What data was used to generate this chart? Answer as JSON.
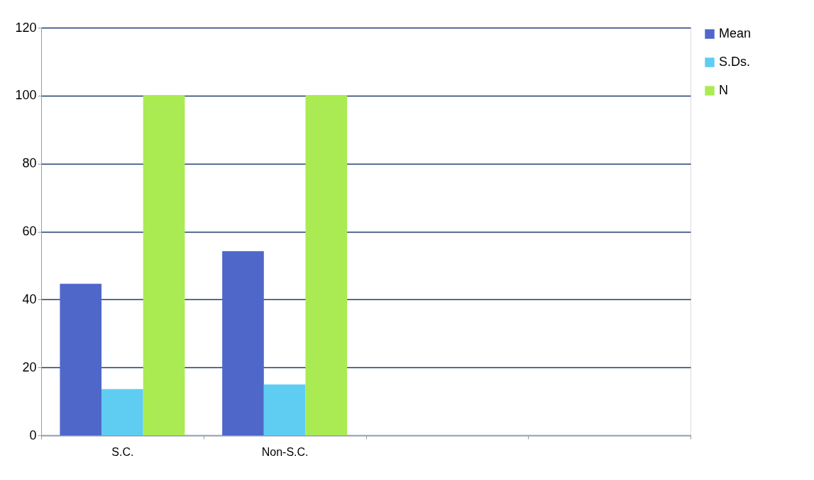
{
  "chart_data": {
    "type": "bar",
    "categories": [
      "S.C.",
      "Non-S.C.",
      null,
      null
    ],
    "series": [
      {
        "name": "Mean",
        "color": "#4f67c9",
        "values": [
          44.6,
          54.2,
          null,
          null
        ]
      },
      {
        "name": "S.Ds.",
        "color": "#5fcdf2",
        "values": [
          13.6,
          15.0,
          null,
          null
        ]
      },
      {
        "name": "N",
        "color": "#aaeb53",
        "values": [
          100,
          100,
          null,
          null
        ]
      }
    ],
    "ylim": [
      0,
      120
    ],
    "yticks": [
      0,
      20,
      40,
      60,
      80,
      100,
      120
    ],
    "grid": "y",
    "legend": "right"
  }
}
